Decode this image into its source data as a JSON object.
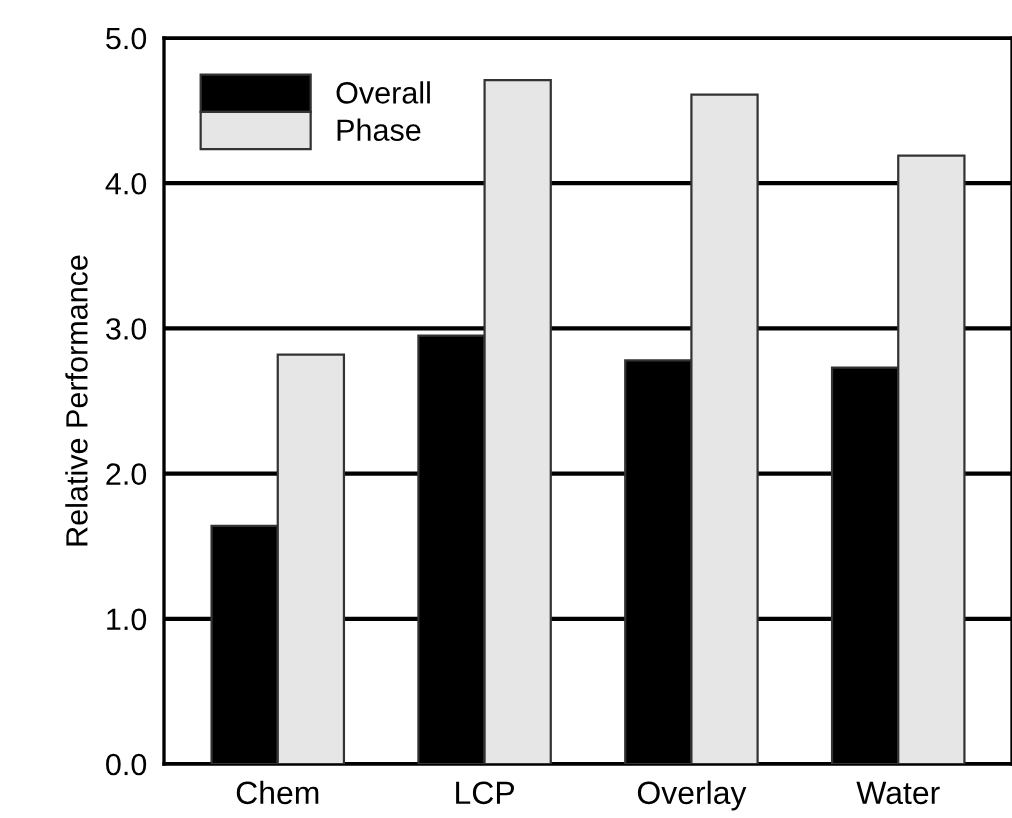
{
  "chart_data": {
    "type": "bar",
    "ylabel": "Relative Performance",
    "categories": [
      "Chem",
      "LCP",
      "Overlay",
      "Water"
    ],
    "series": [
      {
        "name": "Overall",
        "color": "#000000",
        "values": [
          1.64,
          2.95,
          2.78,
          2.73
        ]
      },
      {
        "name": "Phase",
        "color": "#e6e6e6",
        "values": [
          2.82,
          4.71,
          4.61,
          4.19
        ]
      }
    ],
    "ylim": [
      0,
      5
    ],
    "yticks": [
      {
        "value": 0,
        "label": "0.0"
      },
      {
        "value": 1,
        "label": "1.0"
      },
      {
        "value": 2,
        "label": "2.0"
      },
      {
        "value": 3,
        "label": "3.0"
      },
      {
        "value": 4,
        "label": "4.0"
      },
      {
        "value": 5,
        "label": "5.0"
      }
    ],
    "grid": "y",
    "legend": "top left"
  }
}
